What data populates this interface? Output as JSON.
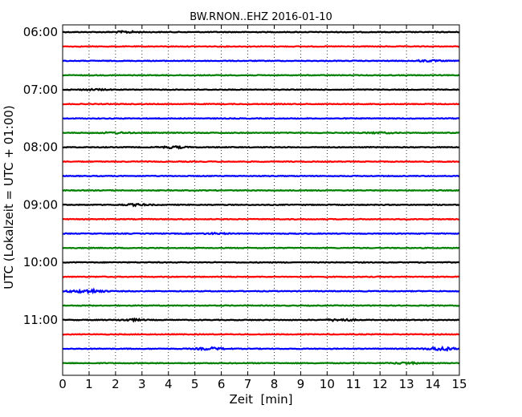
{
  "chart_data": {
    "type": "line",
    "chart_kind": "dayplot-seismogram",
    "title": "BW.RNON..EHZ 2016-01-10",
    "xlabel": "Zeit  [min]",
    "ylabel": "UTC (Lokalzeit = UTC + 01:00)",
    "xlim": [
      0,
      15
    ],
    "x_ticks": [
      "0",
      "1",
      "2",
      "3",
      "4",
      "5",
      "6",
      "7",
      "8",
      "9",
      "10",
      "11",
      "12",
      "13",
      "14",
      "15"
    ],
    "y_tick_labels": [
      "06:00",
      "07:00",
      "08:00",
      "09:00",
      "10:00",
      "11:00"
    ],
    "grid": "vertical dotted lines at each minute",
    "color_cycle": [
      "#000000",
      "#ff0000",
      "#0000ff",
      "#008000"
    ],
    "rows": [
      {
        "start": "06:00",
        "color": "#000000",
        "bursts": [
          {
            "t": 2.4,
            "amp": 0.6
          }
        ]
      },
      {
        "start": "06:15",
        "color": "#ff0000",
        "bursts": []
      },
      {
        "start": "06:30",
        "color": "#0000ff",
        "bursts": [
          {
            "t": 13.8,
            "amp": 0.5
          }
        ]
      },
      {
        "start": "06:45",
        "color": "#008000",
        "bursts": []
      },
      {
        "start": "07:00",
        "color": "#000000",
        "bursts": [
          {
            "t": 1.2,
            "amp": 0.4
          }
        ]
      },
      {
        "start": "07:15",
        "color": "#ff0000",
        "bursts": []
      },
      {
        "start": "07:30",
        "color": "#0000ff",
        "bursts": []
      },
      {
        "start": "07:45",
        "color": "#008000",
        "bursts": [
          {
            "t": 2.0,
            "amp": 0.5
          },
          {
            "t": 12.0,
            "amp": 0.4
          }
        ]
      },
      {
        "start": "08:00",
        "color": "#000000",
        "bursts": [
          {
            "t": 4.2,
            "amp": 0.7
          }
        ]
      },
      {
        "start": "08:15",
        "color": "#ff0000",
        "bursts": []
      },
      {
        "start": "08:30",
        "color": "#0000ff",
        "bursts": []
      },
      {
        "start": "08:45",
        "color": "#008000",
        "bursts": []
      },
      {
        "start": "09:00",
        "color": "#000000",
        "bursts": [
          {
            "t": 2.8,
            "amp": 0.6
          }
        ]
      },
      {
        "start": "09:15",
        "color": "#ff0000",
        "bursts": []
      },
      {
        "start": "09:30",
        "color": "#0000ff",
        "bursts": [
          {
            "t": 5.8,
            "amp": 0.4
          }
        ]
      },
      {
        "start": "09:45",
        "color": "#008000",
        "bursts": []
      },
      {
        "start": "10:00",
        "color": "#000000",
        "bursts": []
      },
      {
        "start": "10:15",
        "color": "#ff0000",
        "bursts": []
      },
      {
        "start": "10:30",
        "color": "#0000ff",
        "bursts": [
          {
            "t": 1.05,
            "amp": 1.2
          },
          {
            "t": 0.4,
            "amp": 0.4
          }
        ]
      },
      {
        "start": "10:45",
        "color": "#008000",
        "bursts": []
      },
      {
        "start": "11:00",
        "color": "#000000",
        "bursts": [
          {
            "t": 2.6,
            "amp": 0.6
          },
          {
            "t": 10.5,
            "amp": 0.8
          }
        ]
      },
      {
        "start": "11:15",
        "color": "#ff0000",
        "bursts": []
      },
      {
        "start": "11:30",
        "color": "#0000ff",
        "bursts": [
          {
            "t": 5.6,
            "amp": 0.9
          },
          {
            "t": 14.3,
            "amp": 1.4
          }
        ]
      },
      {
        "start": "11:45",
        "color": "#008000",
        "bursts": [
          {
            "t": 13.0,
            "amp": 0.6
          }
        ]
      }
    ]
  }
}
